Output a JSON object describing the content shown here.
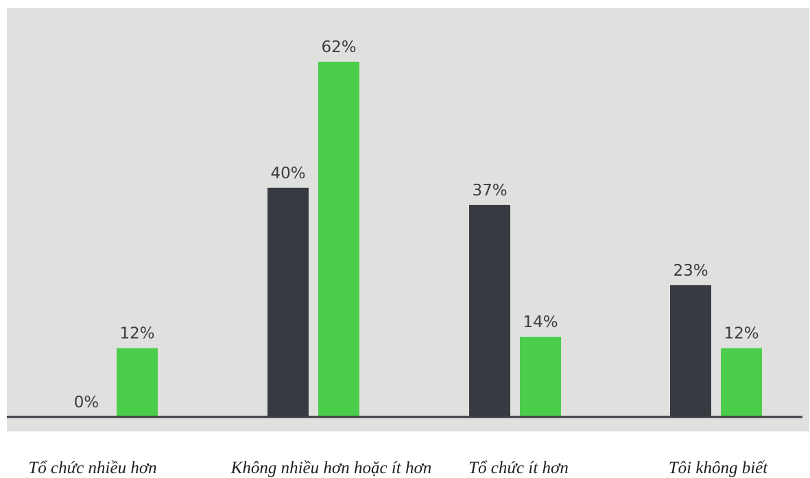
{
  "chart_data": {
    "type": "bar",
    "categories": [
      "Tổ chức nhiều hơn",
      "Không nhiều hơn hoặc ít hơn",
      "Tổ chức ít hơn",
      "Tôi không biết"
    ],
    "series": [
      {
        "color": "#373a40",
        "values": [
          0,
          40,
          37,
          23
        ],
        "labels": [
          "0%",
          "40%",
          "37%",
          "23%"
        ]
      },
      {
        "color": "#4ccd4b",
        "values": [
          12,
          62,
          14,
          12
        ],
        "labels": [
          "12%",
          "62%",
          "14%",
          "12%"
        ]
      }
    ],
    "ylim": [
      0,
      62
    ],
    "grid": false,
    "legend": "none",
    "colors": {
      "plot_background": "#e0e1de",
      "baseline": "#3a3d42"
    }
  }
}
